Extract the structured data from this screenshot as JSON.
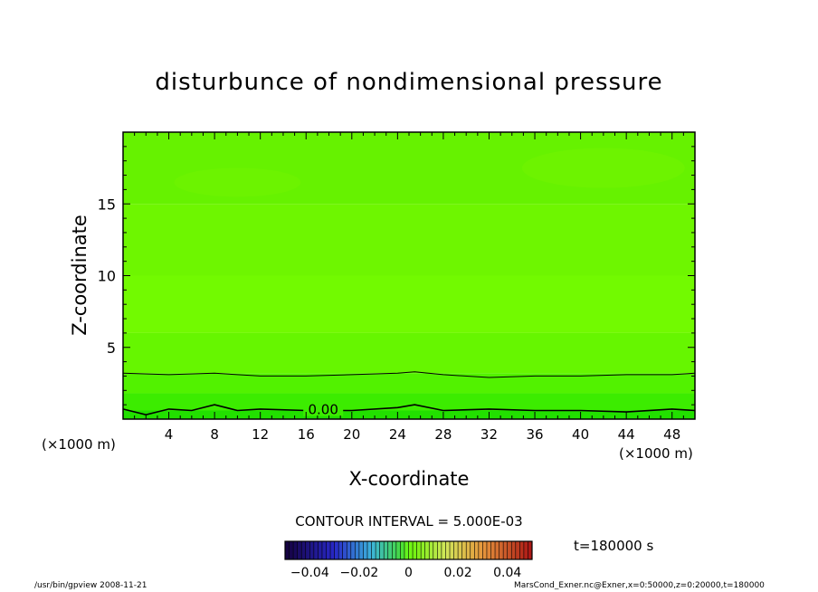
{
  "chart_data": {
    "type": "heatmap",
    "title": "disturbunce of nondimensional pressure",
    "xlabel": "X-coordinate",
    "ylabel": "Z-coordinate",
    "x_unit_left": "(×1000 m)",
    "x_unit_right": "(×1000 m)",
    "xlim": [
      0,
      50
    ],
    "ylim": [
      0,
      20
    ],
    "x_ticks": [
      4,
      8,
      12,
      16,
      20,
      24,
      28,
      32,
      36,
      40,
      44,
      48
    ],
    "x_tick_labels": [
      "4",
      "8",
      "12",
      "16",
      "20",
      "24",
      "28",
      "32",
      "36",
      "40",
      "44",
      "48"
    ],
    "y_ticks": [
      5,
      10,
      15
    ],
    "y_tick_labels": [
      "5",
      "10",
      "15"
    ],
    "contour_label": "0.00",
    "contour_interval_text": "CONTOUR INTERVAL = 5.000E-03",
    "colorbar": {
      "range": [
        -0.05,
        0.05
      ],
      "ticks": [
        -0.04,
        -0.02,
        0,
        0.02,
        0.04
      ],
      "tick_labels": [
        "−0.04",
        "−0.02",
        "0",
        "0.02",
        "0.04"
      ]
    },
    "z_band_values": [
      0.004,
      0.001,
      0.0,
      -0.002,
      -0.003,
      -0.004,
      -0.005
    ],
    "contour_lines": [
      {
        "level": 0.0,
        "x": [
          0,
          2,
          4,
          6,
          8,
          10,
          12,
          16,
          20,
          24,
          25.5,
          28,
          32,
          36,
          40,
          44,
          48,
          50
        ],
        "z": [
          0.7,
          0.3,
          0.7,
          0.6,
          1.0,
          0.6,
          0.7,
          0.6,
          0.6,
          0.8,
          1.0,
          0.6,
          0.7,
          0.6,
          0.6,
          0.5,
          0.7,
          0.6
        ]
      },
      {
        "level": 0.005,
        "x": [
          0,
          4,
          8,
          12,
          16,
          20,
          24,
          25.5,
          28,
          32,
          36,
          40,
          44,
          48,
          50
        ],
        "z": [
          3.2,
          3.1,
          3.2,
          3.0,
          3.0,
          3.1,
          3.2,
          3.3,
          3.1,
          2.9,
          3.0,
          3.0,
          3.1,
          3.1,
          3.2
        ]
      }
    ],
    "time_label": "t=180000 s"
  },
  "footer": {
    "left": "/usr/bin/gpview   2008-11-21",
    "right": "MarsCond_Exner.nc@Exner,x=0:50000,z=0:20000,t=180000"
  },
  "colors": {
    "background": "#ffffff",
    "frame": "#000000",
    "contour": "#000000"
  }
}
